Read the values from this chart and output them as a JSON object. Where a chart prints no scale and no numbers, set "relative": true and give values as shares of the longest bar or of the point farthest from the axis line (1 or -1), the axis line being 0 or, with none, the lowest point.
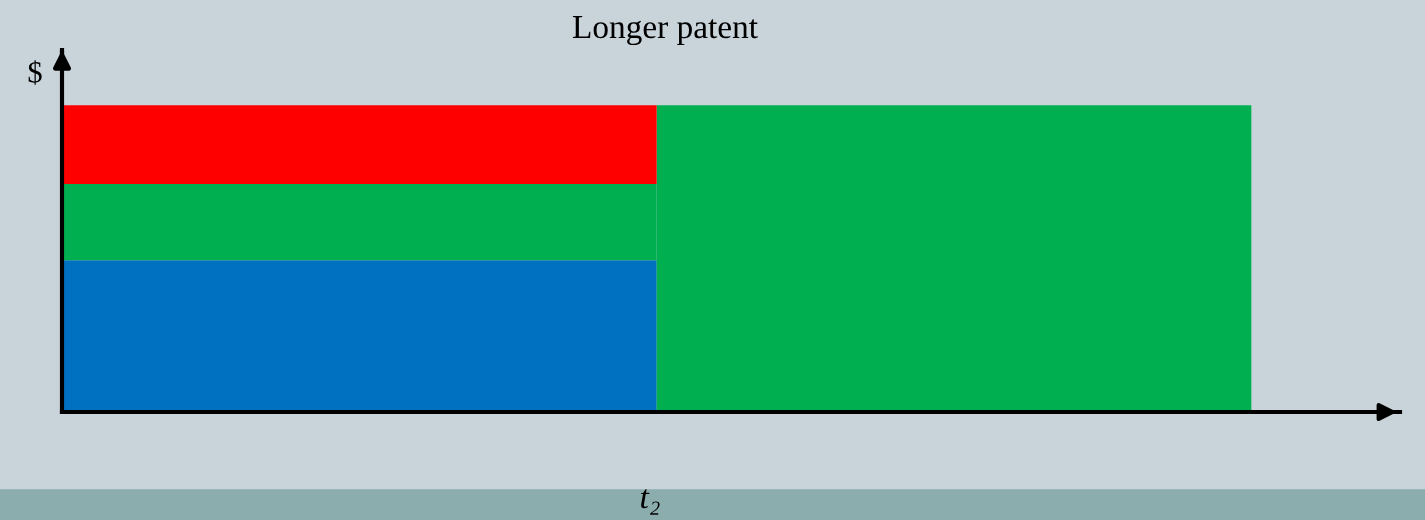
{
  "chart_data": {
    "type": "bar",
    "title": "Longer patent",
    "ylabel": "$",
    "xlabel": "t₂",
    "stacked": true,
    "relative": true,
    "categories": [
      null,
      null
    ],
    "series": [
      {
        "color": "#0070c0",
        "values": [
          0.495,
          0
        ]
      },
      {
        "color": "#00b050",
        "values": [
          0.248,
          1.0
        ]
      },
      {
        "color": "#ff0000",
        "values": [
          0.257,
          0
        ]
      }
    ],
    "grid": false,
    "legend": false
  }
}
